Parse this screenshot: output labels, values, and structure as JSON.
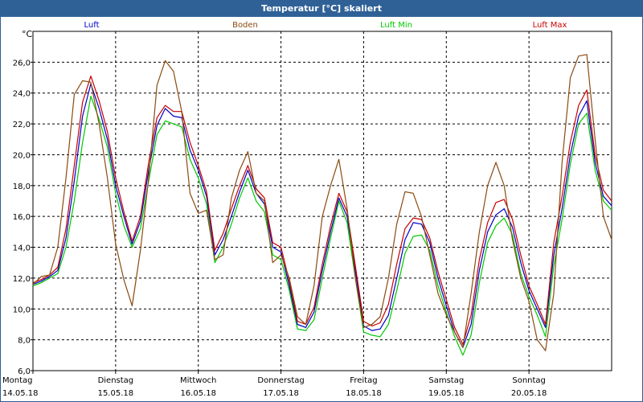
{
  "window": {
    "title": "Temperatur [°C] skaliert"
  },
  "chart_data": {
    "type": "line",
    "title": "Temperatur [°C] skaliert",
    "ylabel": "°C",
    "xlabel": "",
    "ylim": [
      6.0,
      28.0
    ],
    "xlim": [
      0,
      7
    ],
    "grid": true,
    "legend_position": "top",
    "y_ticks": [
      "6,0",
      "8,0",
      "10,0",
      "12,0",
      "14,0",
      "16,0",
      "18,0",
      "20,0",
      "22,0",
      "24,0",
      "26,0"
    ],
    "x_ticks": [
      {
        "day": "Montag",
        "date": "14.05.18"
      },
      {
        "day": "Dienstag",
        "date": "15.05.18"
      },
      {
        "day": "Mittwoch",
        "date": "16.05.18"
      },
      {
        "day": "Donnerstag",
        "date": "17.05.18"
      },
      {
        "day": "Freitag",
        "date": "18.05.18"
      },
      {
        "day": "Samstag",
        "date": "19.05.18"
      },
      {
        "day": "Sonntag",
        "date": "20.05.18"
      }
    ],
    "x": [
      0,
      0.1,
      0.2,
      0.3,
      0.4,
      0.5,
      0.6,
      0.7,
      0.8,
      0.9,
      1.0,
      1.1,
      1.2,
      1.3,
      1.4,
      1.5,
      1.6,
      1.7,
      1.8,
      1.9,
      2.0,
      2.1,
      2.2,
      2.3,
      2.4,
      2.5,
      2.6,
      2.7,
      2.8,
      2.9,
      3.0,
      3.1,
      3.2,
      3.3,
      3.4,
      3.5,
      3.6,
      3.7,
      3.8,
      3.9,
      4.0,
      4.1,
      4.2,
      4.3,
      4.4,
      4.5,
      4.6,
      4.7,
      4.8,
      4.9,
      5.0,
      5.1,
      5.2,
      5.3,
      5.4,
      5.5,
      5.6,
      5.7,
      5.8,
      5.9,
      6.0,
      6.1,
      6.2,
      6.3,
      6.4,
      6.5,
      6.6,
      6.7,
      6.8,
      6.9,
      7.0
    ],
    "series": [
      {
        "name": "Luft",
        "color": "#0000c8",
        "values": [
          11.6,
          11.8,
          12.1,
          12.5,
          14.6,
          18.3,
          22.5,
          24.6,
          23.0,
          21.0,
          18.0,
          16.0,
          14.2,
          15.7,
          19.0,
          21.9,
          23.0,
          22.5,
          22.4,
          20.3,
          19.0,
          17.3,
          13.5,
          14.5,
          16.0,
          17.6,
          19.0,
          17.5,
          16.8,
          14.0,
          13.7,
          11.5,
          9.0,
          8.8,
          9.8,
          12.5,
          15.0,
          17.2,
          16.0,
          12.5,
          8.9,
          8.6,
          8.7,
          9.6,
          12.0,
          14.5,
          15.6,
          15.5,
          14.3,
          12.0,
          10.2,
          8.5,
          7.5,
          9.0,
          12.5,
          15.0,
          16.1,
          16.5,
          15.3,
          13.0,
          11.2,
          10.0,
          8.8,
          13.5,
          16.5,
          20.0,
          22.5,
          23.5,
          19.5,
          17.3,
          16.7
        ]
      },
      {
        "name": "Boden",
        "color": "#8b4a10",
        "values": [
          11.6,
          12.1,
          12.2,
          14.0,
          18.5,
          23.9,
          24.8,
          24.7,
          22.0,
          18.5,
          14.2,
          11.9,
          10.2,
          13.8,
          18.5,
          24.5,
          26.1,
          25.4,
          22.8,
          17.5,
          16.2,
          16.4,
          13.2,
          13.5,
          17.2,
          19.0,
          20.2,
          17.5,
          17.0,
          13.0,
          13.5,
          12.0,
          9.5,
          9.0,
          11.5,
          16.0,
          18.0,
          19.7,
          16.5,
          12.0,
          8.8,
          9.0,
          9.5,
          12.0,
          15.5,
          17.6,
          17.5,
          16.0,
          13.5,
          11.0,
          9.6,
          8.5,
          7.5,
          11.0,
          15.0,
          18.0,
          19.5,
          18.0,
          14.5,
          12.0,
          10.5,
          8.0,
          7.3,
          11.0,
          19.5,
          25.0,
          26.4,
          26.5,
          21.0,
          16.0,
          14.5
        ]
      },
      {
        "name": "Luft Min",
        "color": "#00c800",
        "values": [
          11.5,
          11.7,
          12.0,
          12.3,
          14.0,
          17.0,
          20.8,
          23.8,
          22.3,
          20.5,
          17.5,
          15.4,
          14.0,
          15.2,
          18.3,
          21.3,
          22.2,
          22.0,
          21.8,
          19.7,
          18.5,
          16.8,
          13.0,
          14.0,
          15.5,
          17.2,
          18.5,
          17.0,
          16.3,
          13.5,
          13.2,
          11.2,
          8.7,
          8.6,
          9.3,
          12.0,
          14.6,
          17.0,
          15.6,
          12.0,
          8.5,
          8.3,
          8.2,
          9.0,
          11.2,
          13.6,
          14.7,
          14.8,
          13.8,
          11.5,
          9.8,
          8.2,
          7.0,
          8.3,
          11.7,
          14.3,
          15.4,
          15.9,
          14.8,
          12.3,
          10.8,
          9.6,
          8.2,
          12.8,
          15.8,
          19.4,
          22.0,
          22.7,
          19.0,
          17.0,
          16.4
        ]
      },
      {
        "name": "Luft Max",
        "color": "#c80000",
        "values": [
          11.7,
          11.9,
          12.2,
          12.7,
          15.2,
          19.3,
          23.4,
          25.1,
          23.5,
          21.5,
          18.5,
          16.3,
          14.4,
          16.0,
          19.5,
          22.4,
          23.2,
          22.8,
          22.8,
          20.8,
          19.3,
          17.6,
          13.8,
          14.9,
          16.5,
          18.0,
          19.3,
          17.8,
          17.2,
          14.3,
          14.0,
          11.8,
          9.2,
          9.0,
          10.1,
          12.9,
          15.4,
          17.5,
          16.3,
          12.8,
          9.2,
          8.9,
          9.1,
          10.3,
          12.9,
          15.2,
          15.9,
          15.8,
          14.6,
          12.4,
          10.6,
          8.8,
          7.7,
          9.6,
          13.2,
          15.6,
          16.9,
          17.1,
          15.8,
          13.5,
          11.5,
          10.3,
          9.0,
          14.3,
          17.3,
          20.8,
          23.2,
          24.2,
          20.0,
          17.7,
          17.0
        ]
      }
    ]
  }
}
